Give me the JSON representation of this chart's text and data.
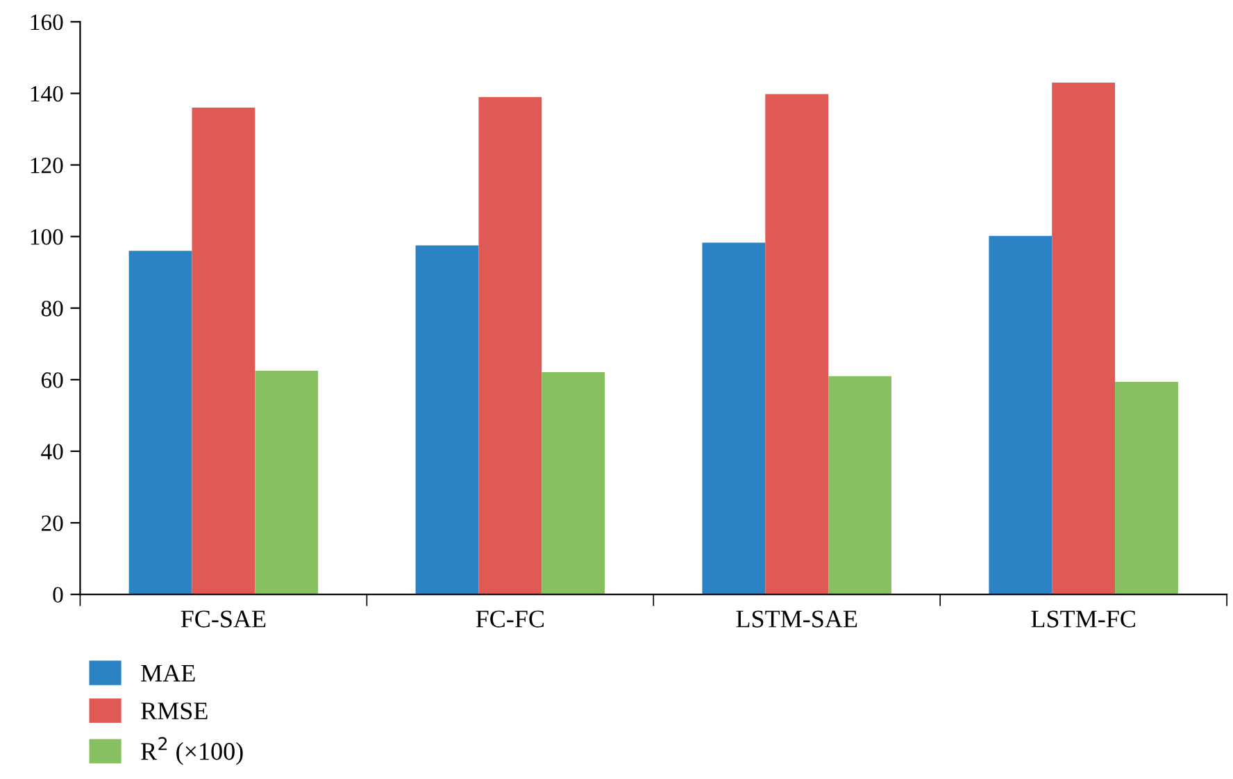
{
  "chart_data": {
    "type": "bar",
    "categories": [
      "FC-SAE",
      "FC-FC",
      "LSTM-SAE",
      "LSTM-FC"
    ],
    "series": [
      {
        "name": "MAE",
        "color": "#2b83c4",
        "values": [
          96,
          97.5,
          98.3,
          100.2
        ]
      },
      {
        "name": "RMSE",
        "color": "#e05a55",
        "values": [
          136,
          139,
          139.8,
          143
        ]
      },
      {
        "name": "R$^{2}$ (×100)",
        "color": "#86c060",
        "values": [
          62.5,
          62.1,
          61,
          59.4
        ]
      }
    ],
    "ylim": [
      0,
      160
    ],
    "yticks": [
      0,
      20,
      40,
      60,
      80,
      100,
      120,
      140,
      160
    ],
    "grid": false,
    "legend": "bottom left"
  }
}
